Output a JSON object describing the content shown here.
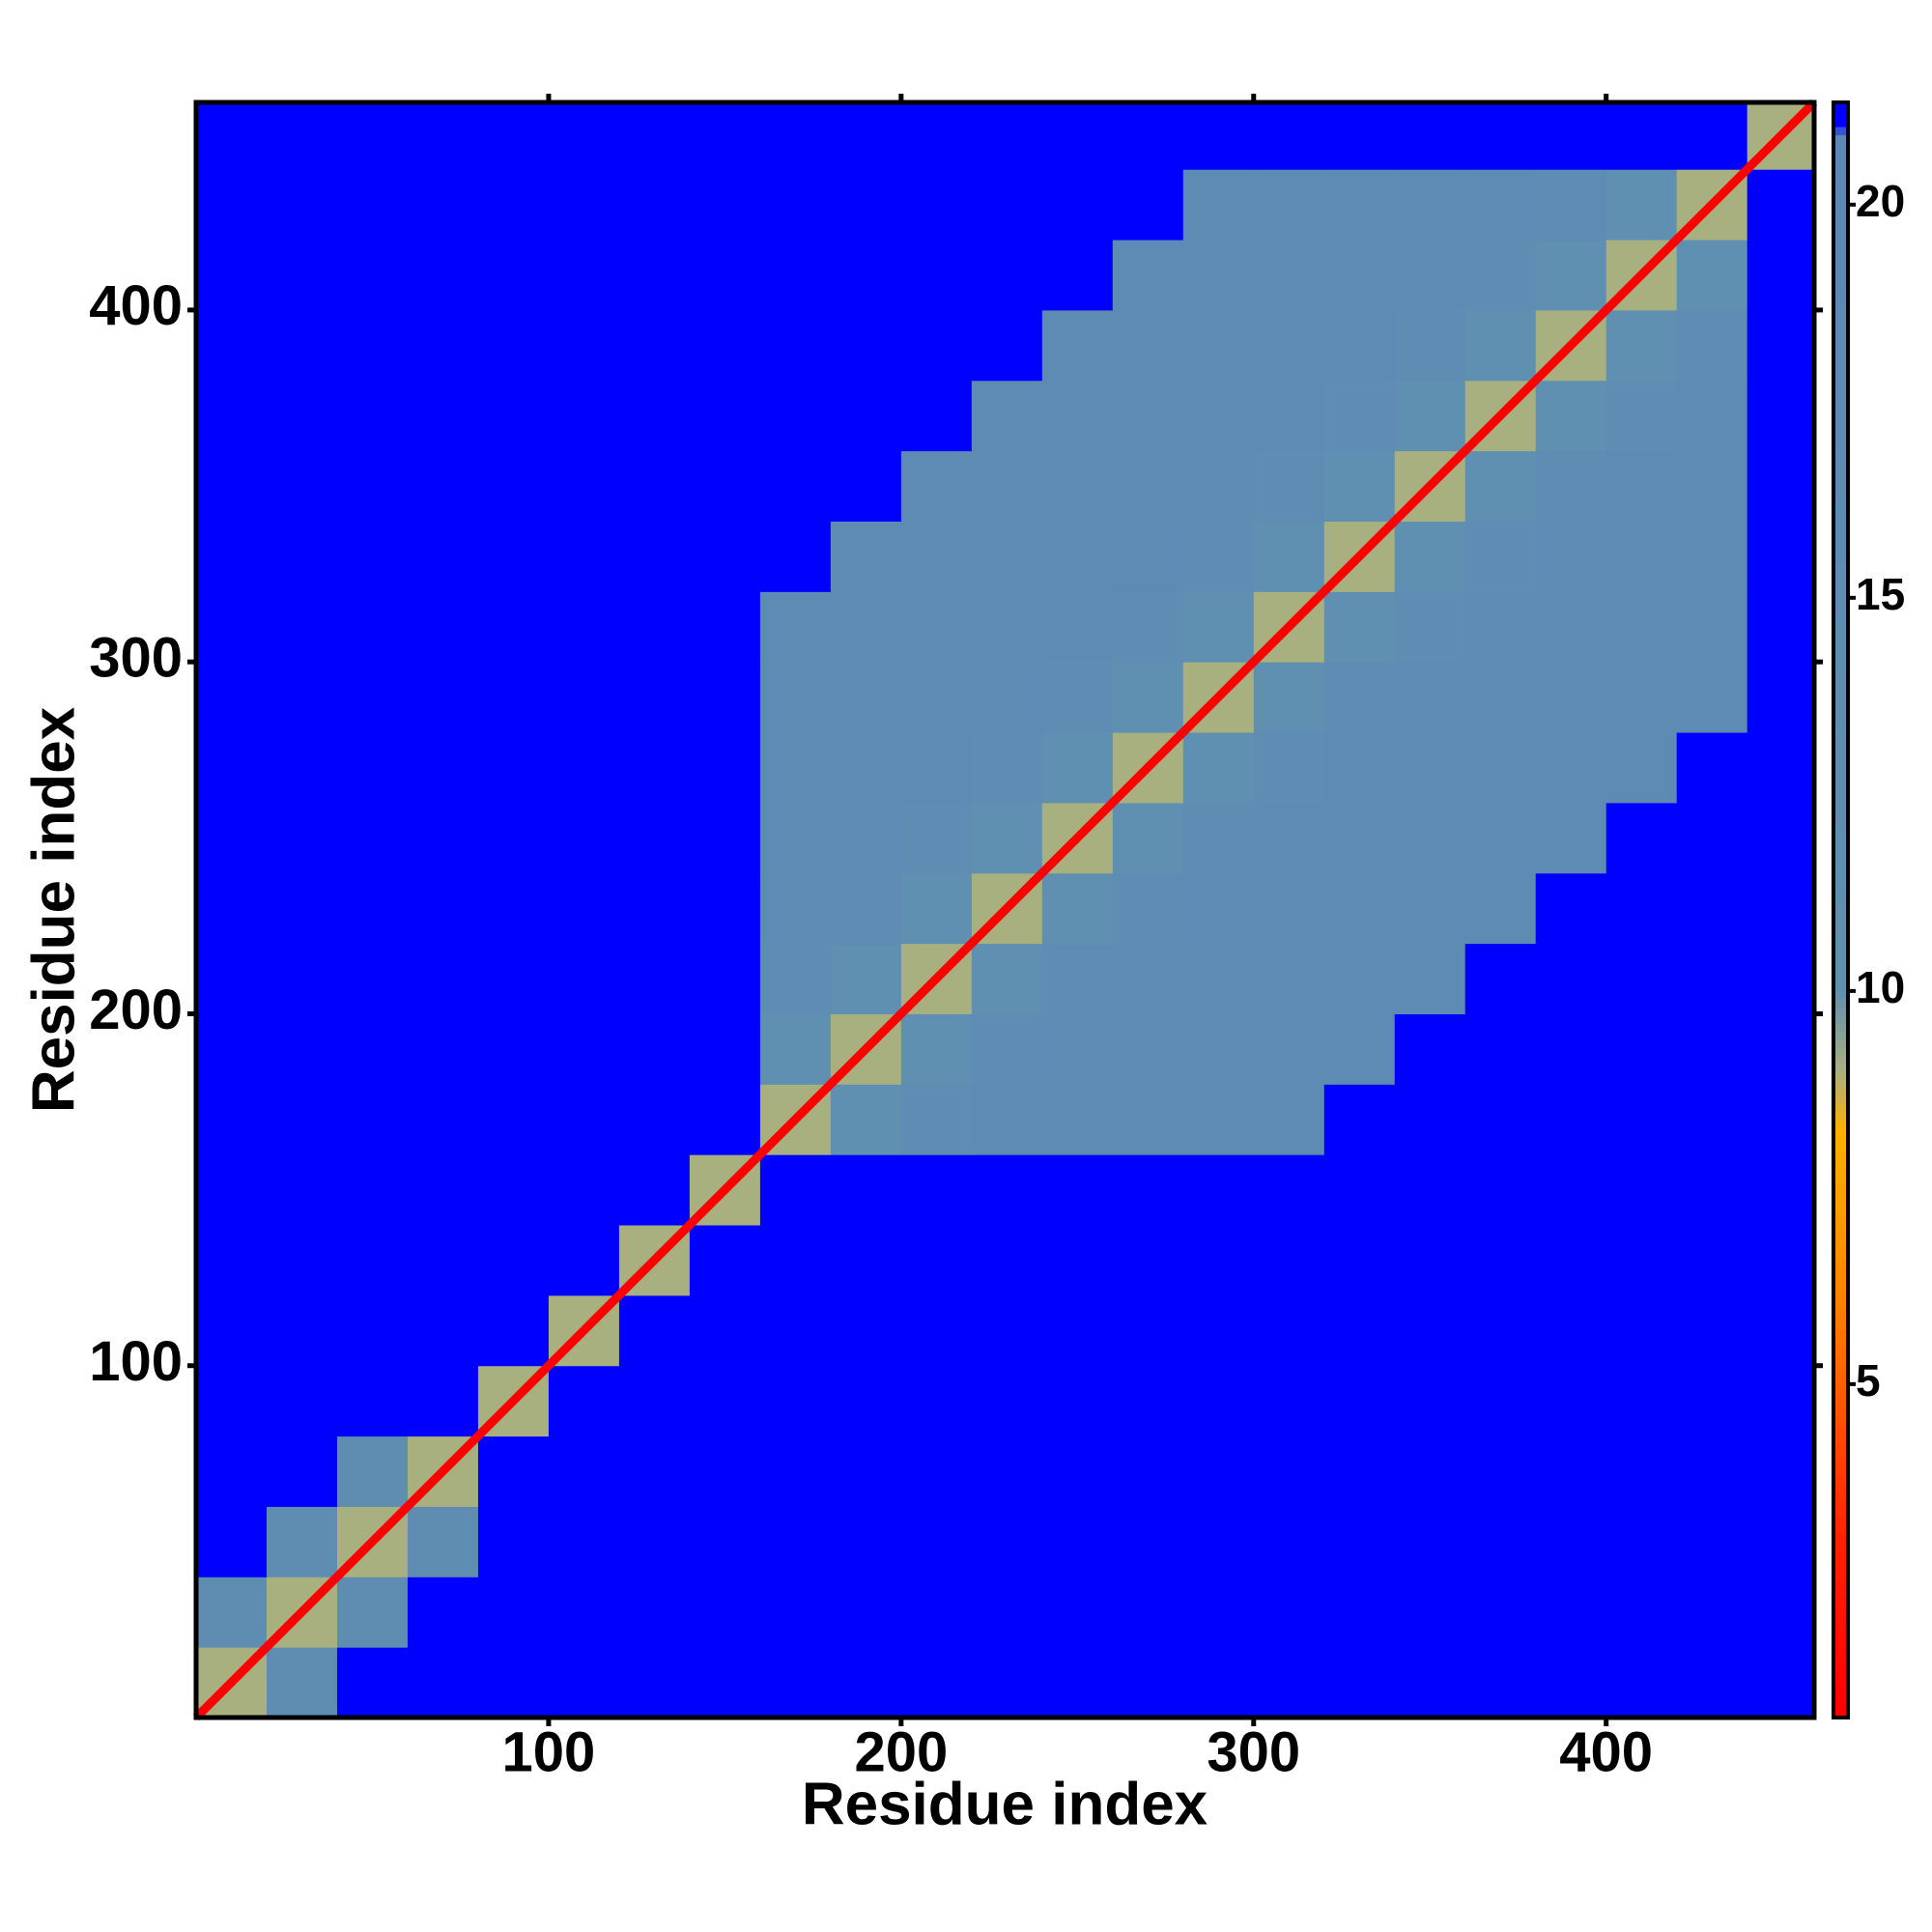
{
  "chart_data": {
    "type": "heatmap",
    "xlabel": "Residue index",
    "ylabel": "Residue index",
    "bins": [
      0,
      20,
      40,
      60,
      80,
      100,
      120,
      140,
      160,
      180,
      200,
      220,
      240,
      260,
      280,
      300,
      320,
      340,
      360,
      380,
      400,
      420,
      440,
      459
    ],
    "xlim": [
      0,
      459
    ],
    "ylim": [
      0,
      459
    ],
    "xticks": [
      100,
      200,
      300,
      400
    ],
    "yticks": [
      100,
      200,
      300,
      400
    ],
    "clim": [
      0.76,
      21.3
    ],
    "cticks": [
      5,
      10,
      15,
      20
    ],
    "colormap": [
      [
        0.76,
        "#ff0000"
      ],
      [
        3,
        "#ff2000"
      ],
      [
        6,
        "#ff8000"
      ],
      [
        8.2,
        "#ffb000"
      ],
      [
        9,
        "#a8b080"
      ],
      [
        10,
        "#6090b0"
      ],
      [
        20.9,
        "#5b88b4"
      ],
      [
        21,
        "#0000ff"
      ],
      [
        21.3,
        "#0000ff"
      ]
    ],
    "diagonal_value": 0.76,
    "matrix": [
      [
        9,
        14,
        21,
        21,
        21,
        21,
        21,
        21,
        21,
        21,
        21,
        21,
        21,
        21,
        21,
        21,
        21,
        21,
        21,
        21,
        21,
        21,
        21
      ],
      [
        14,
        9,
        14,
        21,
        21,
        21,
        21,
        21,
        21,
        21,
        21,
        21,
        21,
        21,
        21,
        21,
        21,
        21,
        21,
        21,
        21,
        21,
        21
      ],
      [
        21,
        14,
        9,
        14,
        21,
        21,
        21,
        21,
        21,
        21,
        21,
        21,
        21,
        21,
        21,
        21,
        21,
        21,
        21,
        21,
        21,
        21,
        21
      ],
      [
        21,
        21,
        14,
        9,
        21,
        21,
        21,
        21,
        21,
        21,
        21,
        21,
        21,
        21,
        21,
        21,
        21,
        21,
        21,
        21,
        21,
        21,
        21
      ],
      [
        21,
        21,
        21,
        21,
        9,
        21,
        21,
        21,
        21,
        21,
        21,
        21,
        21,
        21,
        21,
        21,
        21,
        21,
        21,
        21,
        21,
        21,
        21
      ],
      [
        21,
        21,
        21,
        21,
        21,
        9,
        21,
        21,
        21,
        21,
        21,
        21,
        21,
        21,
        21,
        21,
        21,
        21,
        21,
        21,
        21,
        21,
        21
      ],
      [
        21,
        21,
        21,
        21,
        21,
        21,
        9,
        21,
        21,
        21,
        21,
        21,
        21,
        21,
        21,
        21,
        21,
        21,
        21,
        21,
        21,
        21,
        21
      ],
      [
        21,
        21,
        21,
        21,
        21,
        21,
        21,
        9,
        21,
        21,
        21,
        21,
        21,
        21,
        21,
        21,
        21,
        21,
        21,
        21,
        21,
        21,
        21
      ],
      [
        21,
        21,
        21,
        21,
        21,
        21,
        21,
        21,
        9,
        12,
        15,
        17,
        17,
        17,
        17,
        17,
        21,
        21,
        21,
        21,
        21,
        21,
        21
      ],
      [
        21,
        21,
        21,
        21,
        21,
        21,
        21,
        21,
        12,
        9,
        12,
        15,
        17,
        17,
        17,
        17,
        17,
        21,
        21,
        21,
        21,
        21,
        21
      ],
      [
        21,
        21,
        21,
        21,
        21,
        21,
        21,
        21,
        15,
        12,
        9,
        12,
        15,
        17,
        17,
        17,
        17,
        17,
        21,
        21,
        21,
        21,
        21
      ],
      [
        21,
        21,
        21,
        21,
        21,
        21,
        21,
        21,
        17,
        15,
        12,
        9,
        12,
        15,
        17,
        17,
        17,
        17,
        17,
        21,
        21,
        21,
        21
      ],
      [
        21,
        21,
        21,
        21,
        21,
        21,
        21,
        21,
        17,
        17,
        15,
        12,
        9,
        12,
        15,
        17,
        17,
        17,
        17,
        17,
        21,
        21,
        21
      ],
      [
        21,
        21,
        21,
        21,
        21,
        21,
        21,
        21,
        17,
        17,
        17,
        15,
        12,
        9,
        12,
        15,
        17,
        17,
        17,
        17,
        17,
        21,
        21
      ],
      [
        21,
        21,
        21,
        21,
        21,
        21,
        21,
        21,
        17,
        17,
        17,
        17,
        15,
        12,
        9,
        12,
        15,
        17,
        17,
        17,
        17,
        17,
        21
      ],
      [
        21,
        21,
        21,
        21,
        21,
        21,
        21,
        21,
        17,
        17,
        17,
        17,
        17,
        15,
        12,
        9,
        12,
        15,
        17,
        17,
        17,
        17,
        21
      ],
      [
        21,
        21,
        21,
        21,
        21,
        21,
        21,
        21,
        21,
        17,
        17,
        17,
        17,
        17,
        15,
        12,
        9,
        12,
        15,
        17,
        17,
        17,
        21
      ],
      [
        21,
        21,
        21,
        21,
        21,
        21,
        21,
        21,
        21,
        21,
        17,
        17,
        17,
        17,
        17,
        15,
        12,
        9,
        12,
        15,
        17,
        17,
        21
      ],
      [
        21,
        21,
        21,
        21,
        21,
        21,
        21,
        21,
        21,
        21,
        21,
        17,
        17,
        17,
        17,
        17,
        15,
        12,
        9,
        12,
        15,
        17,
        21
      ],
      [
        21,
        21,
        21,
        21,
        21,
        21,
        21,
        21,
        21,
        21,
        21,
        21,
        17,
        17,
        17,
        17,
        17,
        15,
        12,
        9,
        12,
        15,
        21
      ],
      [
        21,
        21,
        21,
        21,
        21,
        21,
        21,
        21,
        21,
        21,
        21,
        21,
        21,
        17,
        17,
        17,
        17,
        17,
        15,
        12,
        9,
        12,
        21
      ],
      [
        21,
        21,
        21,
        21,
        21,
        21,
        21,
        21,
        21,
        21,
        21,
        21,
        21,
        21,
        17,
        17,
        17,
        17,
        17,
        15,
        12,
        9,
        21
      ],
      [
        21,
        21,
        21,
        21,
        21,
        21,
        21,
        21,
        21,
        21,
        21,
        21,
        21,
        21,
        21,
        21,
        21,
        21,
        21,
        21,
        21,
        21,
        9
      ]
    ]
  }
}
